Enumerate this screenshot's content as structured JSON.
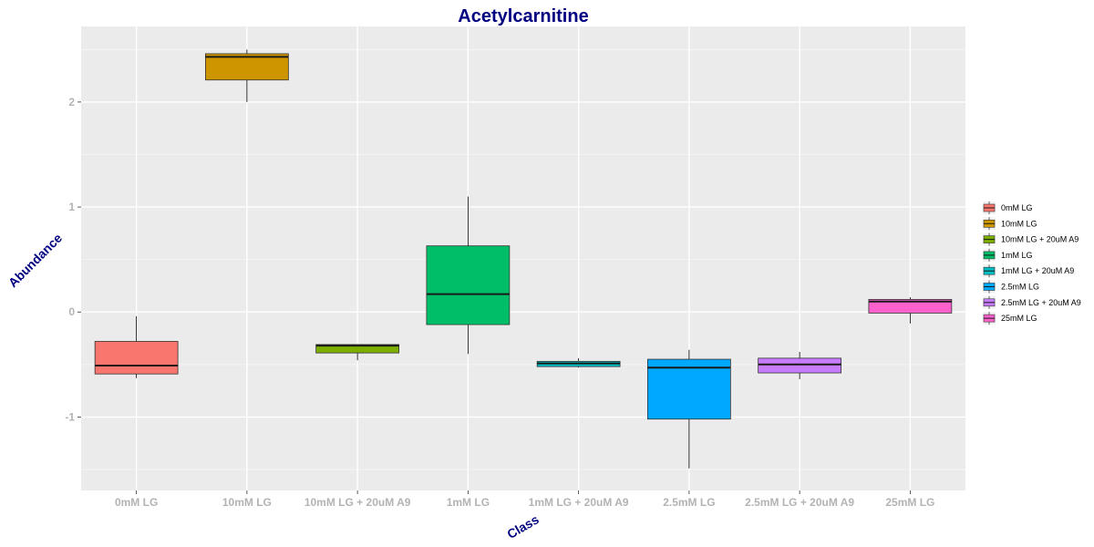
{
  "chart_data": {
    "type": "boxplot",
    "title": "Acetylcarnitine",
    "xlabel": "Class",
    "ylabel": "Abundance",
    "ylim": [
      -1.7,
      2.72
    ],
    "yticks": [
      -1,
      0,
      1,
      2
    ],
    "grid": true,
    "legend_position": "right",
    "categories": [
      "0mM LG",
      "10mM LG",
      "10mM LG + 20uM A9",
      "1mM LG",
      "1mM LG + 20uM A9",
      "2.5mM LG",
      "2.5mM LG + 20uM A9",
      "25mM LG"
    ],
    "boxes": [
      {
        "name": "0mM LG",
        "color": "#F8766D",
        "whisker_low": -0.63,
        "q1": -0.59,
        "median": -0.51,
        "q3": -0.28,
        "whisker_high": -0.04
      },
      {
        "name": "10mM LG",
        "color": "#CD9600",
        "whisker_low": 2.0,
        "q1": 2.21,
        "median": 2.43,
        "q3": 2.46,
        "whisker_high": 2.5
      },
      {
        "name": "10mM LG + 20uM A9",
        "color": "#7CAE00",
        "whisker_low": -0.46,
        "q1": -0.39,
        "median": -0.32,
        "q3": -0.31,
        "whisker_high": -0.31
      },
      {
        "name": "1mM LG",
        "color": "#00BE67",
        "whisker_low": -0.4,
        "q1": -0.12,
        "median": 0.17,
        "q3": 0.63,
        "whisker_high": 1.1
      },
      {
        "name": "1mM LG + 20uM A9",
        "color": "#00BFC4",
        "whisker_low": -0.53,
        "q1": -0.52,
        "median": -0.49,
        "q3": -0.47,
        "whisker_high": -0.44
      },
      {
        "name": "2.5mM LG",
        "color": "#00A9FF",
        "whisker_low": -1.49,
        "q1": -1.02,
        "median": -0.53,
        "q3": -0.45,
        "whisker_high": -0.36
      },
      {
        "name": "2.5mM LG + 20uM A9",
        "color": "#C77CFF",
        "whisker_low": -0.64,
        "q1": -0.58,
        "median": -0.5,
        "q3": -0.44,
        "whisker_high": -0.38
      },
      {
        "name": "25mM LG",
        "color": "#FF61CC",
        "whisker_low": -0.11,
        "q1": -0.01,
        "median": 0.1,
        "q3": 0.12,
        "whisker_high": 0.14
      }
    ]
  }
}
